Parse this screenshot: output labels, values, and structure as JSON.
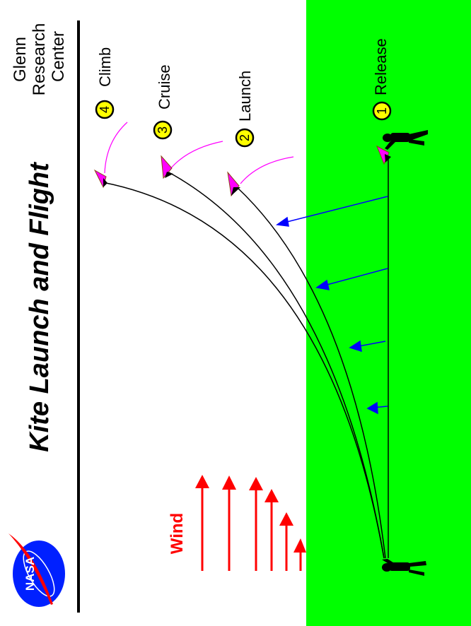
{
  "title": "Kite Launch and Flight",
  "org_lines": [
    "Glenn",
    "Research",
    "Center"
  ],
  "logo_text": "NASA",
  "stages": [
    {
      "number": "1",
      "label": "Release"
    },
    {
      "number": "2",
      "label": "Launch"
    },
    {
      "number": "3",
      "label": "Cruise"
    },
    {
      "number": "4",
      "label": "Climb"
    }
  ],
  "wind_label": "Wind",
  "colors": {
    "ground": "#00ff00",
    "wind": "#ff0000",
    "force": "#0000ff",
    "kite": "#ff00ff",
    "badge": "#ffff00",
    "logo": "#0020ff"
  }
}
